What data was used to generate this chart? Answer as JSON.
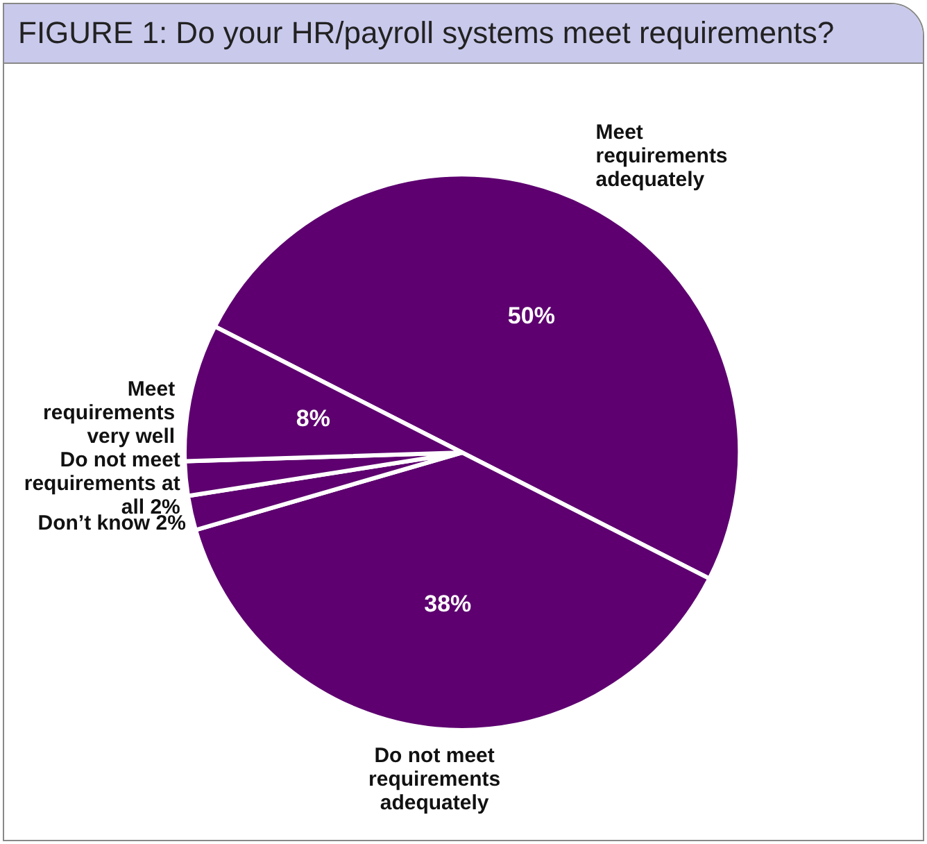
{
  "chart_data": {
    "type": "pie",
    "title": "FIGURE 1: Do your HR/payroll systems meet requirements?",
    "categories": [
      "Meet requirements adequately",
      "Do not meet requirements adequately",
      "Don’t know",
      "Do not meet requirements at all",
      "Meet requirements very well"
    ],
    "values": [
      50,
      38,
      2,
      2,
      8
    ],
    "value_labels": [
      "50%",
      "38%",
      "2%",
      "2%",
      "8%"
    ],
    "colors": [
      "#5e0070",
      "#5e0070",
      "#5e0070",
      "#5e0070",
      "#5e0070"
    ]
  }
}
